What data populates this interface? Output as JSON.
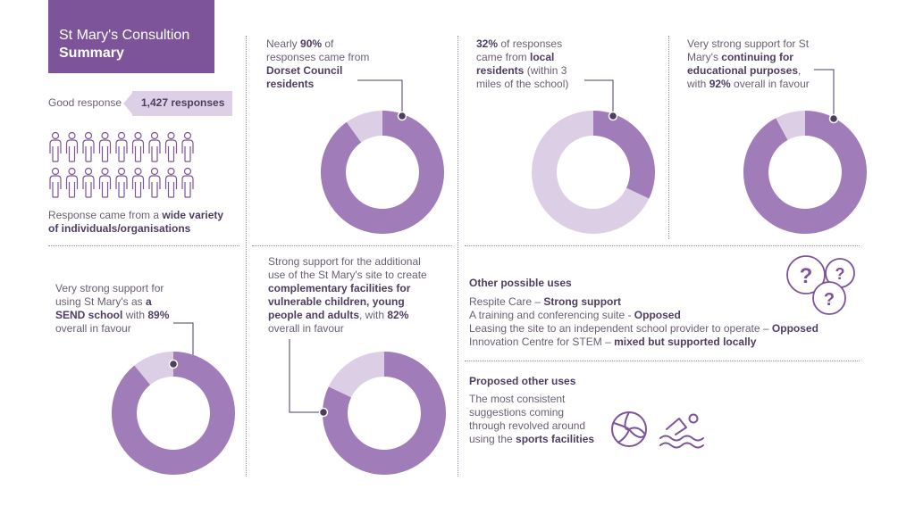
{
  "header": {
    "title_line1": "St Mary's Consultion",
    "title_line2": "Summary"
  },
  "responses": {
    "label": "Good response",
    "count": "1,427 responses",
    "variety_pre": "Response came from a ",
    "variety_bold": "wide variety of individuals/organisations"
  },
  "stat_dorset": {
    "pre": "Nearly ",
    "bold1": "90%",
    "mid": " of responses came from ",
    "bold2": "Dorset Council residents",
    "percent": 90
  },
  "stat_local": {
    "bold1": "32%",
    "mid": " of responses came from ",
    "bold2": "local residents",
    "post": " (within 3 miles of the school)",
    "percent": 32
  },
  "stat_education": {
    "pre": "Very strong support for St Mary's ",
    "bold1": "continuing for educational purposes",
    "mid": ", with ",
    "bold2": "92%",
    "post": " overall in favour",
    "percent": 92
  },
  "stat_send": {
    "pre": "Very strong support for using St Mary's as ",
    "bold1": "a SEND school",
    "mid": " with ",
    "bold2": "89%",
    "post": " overall in favour",
    "percent": 89
  },
  "stat_complementary": {
    "pre": "Strong support for the additional use of the St Mary's site to create ",
    "bold1": "complementary facilities for vulnerable children, young people and adults",
    "mid": ", with ",
    "bold2": "82%",
    "post": " overall in favour",
    "percent": 82
  },
  "other_uses": {
    "heading": "Other possible uses",
    "items": [
      {
        "text": "Respite Care – ",
        "verdict": "Strong support"
      },
      {
        "text": "A training and conferencing suite - ",
        "verdict": "Opposed"
      },
      {
        "text": "Leasing the site to an independent school provider to operate – ",
        "verdict": "Opposed"
      },
      {
        "text": "Innovation Centre for STEM – ",
        "verdict": "mixed but supported locally"
      }
    ]
  },
  "proposed": {
    "heading": "Proposed other uses",
    "pre": "The most consistent suggestions coming through revolved around using the ",
    "bold": "sports facilities"
  },
  "colors": {
    "primary": "#a07cb8",
    "light": "#dccfe5",
    "dark": "#4e3d62",
    "title_bg": "#7d5499"
  },
  "icons": [
    "person-icon",
    "question-marks-icon",
    "volleyball-icon",
    "swimmer-icon"
  ]
}
